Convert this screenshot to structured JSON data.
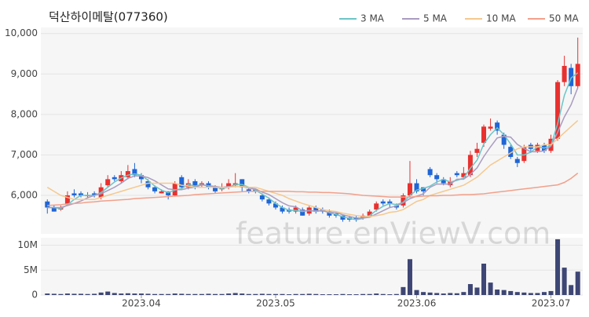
{
  "chart_data": {
    "type": "candlestick",
    "title": "덕산하이메탈(077360)",
    "watermark": "feature.enViewV.com",
    "up_color": "#e8312f",
    "down_color": "#1f66d6",
    "categories": [
      null,
      null,
      null,
      null,
      null,
      null,
      null,
      null,
      null,
      null,
      null,
      null,
      null,
      null,
      "2023.04",
      null,
      null,
      null,
      null,
      null,
      null,
      null,
      null,
      null,
      null,
      null,
      null,
      null,
      null,
      null,
      null,
      null,
      null,
      null,
      "2023.05",
      null,
      null,
      null,
      null,
      null,
      null,
      null,
      null,
      null,
      null,
      null,
      null,
      null,
      null,
      null,
      null,
      null,
      null,
      null,
      null,
      "2023.06",
      null,
      null,
      null,
      null,
      null,
      null,
      null,
      null,
      null,
      null,
      null,
      null,
      null,
      null,
      null,
      null,
      null,
      null,
      null,
      "2023.07",
      null,
      null,
      null,
      null
    ],
    "ohlc": [
      [
        5850,
        5900,
        5550,
        5700
      ],
      [
        5700,
        5750,
        5600,
        5600
      ],
      [
        5650,
        5750,
        5620,
        5700
      ],
      [
        5780,
        6100,
        5750,
        6000
      ],
      [
        6050,
        6150,
        5950,
        6000
      ],
      [
        6050,
        6100,
        5950,
        6000
      ],
      [
        5980,
        6080,
        5950,
        6000
      ],
      [
        6050,
        6100,
        5950,
        6000
      ],
      [
        5950,
        6300,
        5900,
        6200
      ],
      [
        6250,
        6500,
        6200,
        6400
      ],
      [
        6450,
        6500,
        6350,
        6400
      ],
      [
        6350,
        6600,
        6300,
        6500
      ],
      [
        6450,
        6750,
        6400,
        6600
      ],
      [
        6650,
        6800,
        6450,
        6500
      ],
      [
        6500,
        6550,
        6300,
        6400
      ],
      [
        6350,
        6400,
        6150,
        6200
      ],
      [
        6200,
        6250,
        6050,
        6100
      ],
      [
        6050,
        6150,
        6050,
        6100
      ],
      [
        6100,
        6100,
        5900,
        6000
      ],
      [
        6000,
        6350,
        5980,
        6300
      ],
      [
        6450,
        6500,
        6150,
        6200
      ],
      [
        6200,
        6400,
        6150,
        6300
      ],
      [
        6350,
        6400,
        6150,
        6200
      ],
      [
        6250,
        6350,
        6200,
        6300
      ],
      [
        6300,
        6350,
        6150,
        6200
      ],
      [
        6200,
        6250,
        6050,
        6100
      ],
      [
        6150,
        6300,
        6100,
        6200
      ],
      [
        6200,
        6400,
        6150,
        6300
      ],
      [
        6250,
        6550,
        6200,
        6300
      ],
      [
        6400,
        6400,
        6100,
        6200
      ],
      [
        6150,
        6200,
        6050,
        6100
      ],
      [
        6150,
        6150,
        6050,
        6100
      ],
      [
        6000,
        6050,
        5850,
        5900
      ],
      [
        5900,
        5950,
        5750,
        5800
      ],
      [
        5800,
        5850,
        5650,
        5700
      ],
      [
        5700,
        5750,
        5550,
        5600
      ],
      [
        5650,
        5700,
        5550,
        5600
      ],
      [
        5600,
        5750,
        5550,
        5700
      ],
      [
        5650,
        5700,
        5500,
        5500
      ],
      [
        5550,
        5750,
        5500,
        5700
      ],
      [
        5700,
        5750,
        5550,
        5600
      ],
      [
        5650,
        5700,
        5550,
        5600
      ],
      [
        5600,
        5650,
        5450,
        5500
      ],
      [
        5550,
        5600,
        5450,
        5500
      ],
      [
        5500,
        5500,
        5350,
        5400
      ],
      [
        5450,
        5500,
        5350,
        5400
      ],
      [
        5450,
        5500,
        5350,
        5400
      ],
      [
        5450,
        5550,
        5400,
        5500
      ],
      [
        5500,
        5650,
        5450,
        5600
      ],
      [
        5650,
        5850,
        5600,
        5800
      ],
      [
        5850,
        5900,
        5750,
        5800
      ],
      [
        5850,
        5900,
        5700,
        5800
      ],
      [
        5750,
        5800,
        5650,
        5700
      ],
      [
        5750,
        6050,
        5700,
        6000
      ],
      [
        6000,
        6850,
        5950,
        6300
      ],
      [
        6300,
        6400,
        6050,
        6100
      ],
      [
        6200,
        6200,
        6000,
        6100
      ],
      [
        6650,
        6700,
        6450,
        6500
      ],
      [
        6500,
        6550,
        6300,
        6400
      ],
      [
        6400,
        6450,
        6250,
        6300
      ],
      [
        6250,
        6450,
        6200,
        6350
      ],
      [
        6550,
        6600,
        6450,
        6500
      ],
      [
        6450,
        6700,
        6400,
        6550
      ],
      [
        6500,
        7100,
        6450,
        7000
      ],
      [
        7050,
        7300,
        6950,
        7150
      ],
      [
        7300,
        7750,
        7200,
        7700
      ],
      [
        7650,
        7900,
        7600,
        7700
      ],
      [
        7800,
        7850,
        7500,
        7600
      ],
      [
        7500,
        7550,
        7150,
        7250
      ],
      [
        7200,
        7250,
        6900,
        6950
      ],
      [
        6900,
        6950,
        6700,
        6800
      ],
      [
        6850,
        7250,
        6800,
        7200
      ],
      [
        7250,
        7300,
        7050,
        7150
      ],
      [
        7100,
        7300,
        7050,
        7250
      ],
      [
        7250,
        7300,
        7050,
        7100
      ],
      [
        7100,
        7500,
        7050,
        7400
      ],
      [
        7400,
        8850,
        7350,
        8800
      ],
      [
        8800,
        9450,
        8700,
        9200
      ],
      [
        9150,
        9250,
        8500,
        8700
      ],
      [
        8700,
        9900,
        8650,
        9250
      ]
    ],
    "ylim": [
      5050,
      10150
    ],
    "yticks": [
      {
        "value": 6000,
        "label": "6,000"
      },
      {
        "value": 7000,
        "label": "7,000"
      },
      {
        "value": 8000,
        "label": "8,000"
      },
      {
        "value": 9000,
        "label": "9,000"
      },
      {
        "value": 10000,
        "label": "10,000"
      }
    ],
    "grid": true,
    "moving_averages": [
      {
        "name": "3 MA",
        "color": "#6cc5c8",
        "values": [
          5700,
          5700,
          5670,
          5770,
          5900,
          6000,
          6000,
          6000,
          6070,
          6200,
          6330,
          6430,
          6500,
          6530,
          6500,
          6370,
          6230,
          6130,
          6070,
          6130,
          6170,
          6270,
          6230,
          6270,
          6230,
          6200,
          6170,
          6200,
          6270,
          6270,
          6200,
          6130,
          6030,
          5930,
          5800,
          5700,
          5630,
          5630,
          5600,
          5630,
          5600,
          5630,
          5570,
          5530,
          5470,
          5430,
          5400,
          5430,
          5500,
          5630,
          5730,
          5800,
          5770,
          5830,
          6000,
          6130,
          6170,
          6230,
          6330,
          6400,
          6330,
          6370,
          6430,
          6670,
          6870,
          7270,
          7500,
          7670,
          7500,
          7270,
          7000,
          7000,
          7070,
          7200,
          7170,
          7230,
          7770,
          8470,
          8900,
          9030
        ]
      },
      {
        "name": "5 MA",
        "color": "#a99cc0",
        "values": [
          5700,
          5700,
          5700,
          5750,
          5800,
          5860,
          5940,
          6000,
          6040,
          6120,
          6200,
          6300,
          6420,
          6480,
          6480,
          6440,
          6360,
          6260,
          6160,
          6140,
          6140,
          6180,
          6200,
          6260,
          6240,
          6220,
          6200,
          6220,
          6220,
          6220,
          6180,
          6160,
          6080,
          6020,
          5920,
          5820,
          5740,
          5720,
          5620,
          5620,
          5620,
          5620,
          5580,
          5580,
          5520,
          5480,
          5440,
          5440,
          5460,
          5540,
          5620,
          5700,
          5740,
          5820,
          5920,
          5980,
          6040,
          6200,
          6280,
          6280,
          6280,
          6400,
          6400,
          6520,
          6680,
          6960,
          7200,
          7420,
          7460,
          7440,
          7260,
          7160,
          7080,
          7080,
          7100,
          7220,
          7560,
          7940,
          8240,
          8660
        ]
      },
      {
        "name": "10 MA",
        "color": "#f5c88e",
        "values": [
          6200,
          6100,
          6000,
          5950,
          5900,
          5900,
          5900,
          5900,
          5950,
          6000,
          6050,
          6100,
          6150,
          6200,
          6250,
          6300,
          6300,
          6300,
          6300,
          6300,
          6250,
          6230,
          6200,
          6200,
          6200,
          6200,
          6200,
          6200,
          6220,
          6220,
          6200,
          6200,
          6150,
          6100,
          6050,
          6000,
          5920,
          5860,
          5800,
          5750,
          5700,
          5650,
          5620,
          5600,
          5560,
          5530,
          5500,
          5480,
          5480,
          5500,
          5530,
          5580,
          5600,
          5650,
          5750,
          5850,
          5900,
          6000,
          6050,
          6100,
          6150,
          6200,
          6250,
          6350,
          6450,
          6600,
          6750,
          6850,
          6950,
          7050,
          7150,
          7200,
          7200,
          7200,
          7250,
          7250,
          7400,
          7550,
          7700,
          7850
        ]
      },
      {
        "name": "50 MA",
        "color": "#f2a08b",
        "values": [
          5750,
          5760,
          5770,
          5790,
          5800,
          5810,
          5830,
          5840,
          5860,
          5870,
          5880,
          5890,
          5900,
          5920,
          5930,
          5940,
          5950,
          5960,
          5970,
          5980,
          5990,
          6000,
          6020,
          6030,
          6040,
          6050,
          6060,
          6070,
          6080,
          6090,
          6100,
          6100,
          6100,
          6100,
          6100,
          6100,
          6100,
          6090,
          6090,
          6080,
          6080,
          6070,
          6070,
          6060,
          6050,
          6040,
          6020,
          6000,
          5990,
          5980,
          5970,
          5960,
          5960,
          5960,
          5960,
          5970,
          5980,
          5990,
          5990,
          6000,
          6000,
          6010,
          6020,
          6020,
          6030,
          6040,
          6060,
          6080,
          6100,
          6120,
          6140,
          6160,
          6180,
          6200,
          6220,
          6240,
          6260,
          6320,
          6420,
          6550
        ]
      }
    ],
    "volume": {
      "color": "#3d4674",
      "values": [
        300000,
        250000,
        200000,
        300000,
        250000,
        250000,
        200000,
        250000,
        500000,
        700000,
        400000,
        300000,
        350000,
        300000,
        300000,
        250000,
        200000,
        200000,
        200000,
        300000,
        250000,
        200000,
        200000,
        200000,
        250000,
        200000,
        200000,
        300000,
        400000,
        300000,
        200000,
        200000,
        250000,
        200000,
        200000,
        200000,
        150000,
        200000,
        200000,
        250000,
        200000,
        150000,
        150000,
        150000,
        200000,
        150000,
        150000,
        200000,
        200000,
        300000,
        200000,
        150000,
        200000,
        1600000,
        7200000,
        1000000,
        600000,
        500000,
        400000,
        300000,
        400000,
        350000,
        600000,
        2200000,
        1500000,
        6300000,
        2500000,
        1100000,
        1000000,
        800000,
        600000,
        500000,
        400000,
        400000,
        600000,
        800000,
        11200000,
        5500000,
        2000000,
        4700000
      ],
      "ylim": [
        0,
        11500000
      ],
      "yticks": [
        0,
        {
          "value": 5000000,
          "label": "5M"
        },
        {
          "value": 10000000,
          "label": "10M"
        }
      ]
    }
  }
}
